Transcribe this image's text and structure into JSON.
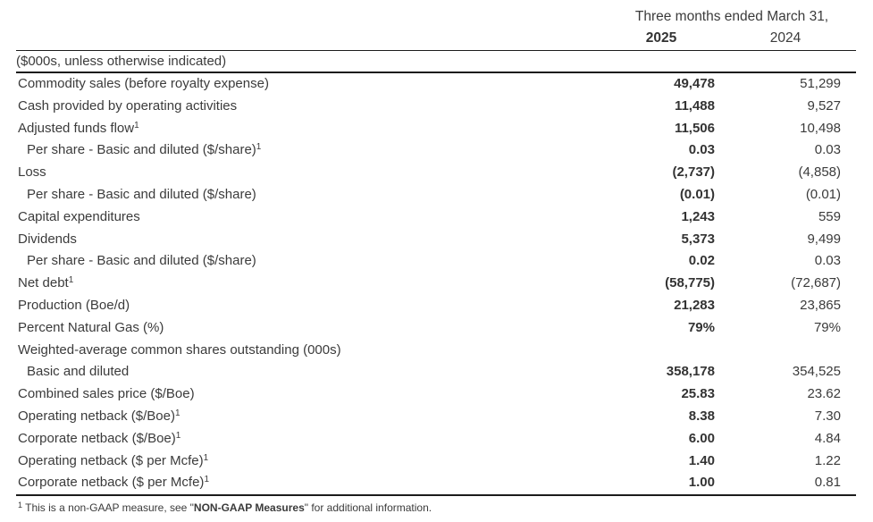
{
  "page": {
    "background": "#ffffff",
    "text_color": "#3b3b3b",
    "line_color": "#1c1c1c"
  },
  "table": {
    "period_header": "Three months ended March 31,",
    "col_2025": "2025",
    "col_2024": "2024",
    "unit_note": "($000s, unless otherwise indicated)",
    "rows": [
      {
        "label": "Commodity sales (before royalty expense)",
        "sup": "",
        "indent": false,
        "v2025": "49,478",
        "v2024": "51,299"
      },
      {
        "label": "Cash provided by operating activities",
        "sup": "",
        "indent": false,
        "v2025": "11,488",
        "v2024": "9,527"
      },
      {
        "label": "Adjusted funds flow",
        "sup": "1",
        "indent": false,
        "v2025": "11,506",
        "v2024": "10,498"
      },
      {
        "label": "Per share - Basic and diluted ($/share)",
        "sup": "1",
        "indent": true,
        "v2025": "0.03",
        "v2024": "0.03"
      },
      {
        "label": "Loss",
        "sup": "",
        "indent": false,
        "v2025": "(2,737)",
        "v2024": "(4,858)"
      },
      {
        "label": "Per share - Basic and diluted ($/share)",
        "sup": "",
        "indent": true,
        "v2025": "(0.01)",
        "v2024": "(0.01)"
      },
      {
        "label": "Capital expenditures",
        "sup": "",
        "indent": false,
        "v2025": "1,243",
        "v2024": "559"
      },
      {
        "label": "Dividends",
        "sup": "",
        "indent": false,
        "v2025": "5,373",
        "v2024": "9,499"
      },
      {
        "label": "Per share - Basic and diluted ($/share)",
        "sup": "",
        "indent": true,
        "v2025": "0.02",
        "v2024": "0.03"
      },
      {
        "label": "Net debt",
        "sup": "1",
        "indent": false,
        "v2025": "(58,775)",
        "v2024": "(72,687)"
      },
      {
        "label": "Production (Boe/d)",
        "sup": "",
        "indent": false,
        "v2025": "21,283",
        "v2024": "23,865"
      },
      {
        "label": "Percent Natural Gas (%)",
        "sup": "",
        "indent": false,
        "v2025": "79%",
        "v2024": "79%"
      },
      {
        "label": "Weighted-average common shares outstanding (000s)",
        "sup": "",
        "indent": false,
        "v2025": "",
        "v2024": ""
      },
      {
        "label": "Basic and diluted",
        "sup": "",
        "indent": true,
        "v2025": "358,178",
        "v2024": "354,525"
      },
      {
        "label": "Combined sales price ($/Boe)",
        "sup": "",
        "indent": false,
        "v2025": "25.83",
        "v2024": "23.62"
      },
      {
        "label": "Operating netback ($/Boe)",
        "sup": "1",
        "indent": false,
        "v2025": "8.38",
        "v2024": "7.30"
      },
      {
        "label": "Corporate netback ($/Boe)",
        "sup": "1",
        "indent": false,
        "v2025": "6.00",
        "v2024": "4.84"
      },
      {
        "label": "Operating netback ($ per Mcfe)",
        "sup": "1",
        "indent": false,
        "v2025": "1.40",
        "v2024": "1.22"
      },
      {
        "label": "Corporate netback ($ per Mcfe)",
        "sup": "1",
        "indent": false,
        "v2025": "1.00",
        "v2024": "0.81"
      }
    ],
    "footnote": {
      "sup": "1",
      "prefix": " This is a non-GAAP measure, see \"",
      "bold": "NON-GAAP Measures",
      "suffix": "\" for additional information."
    }
  }
}
